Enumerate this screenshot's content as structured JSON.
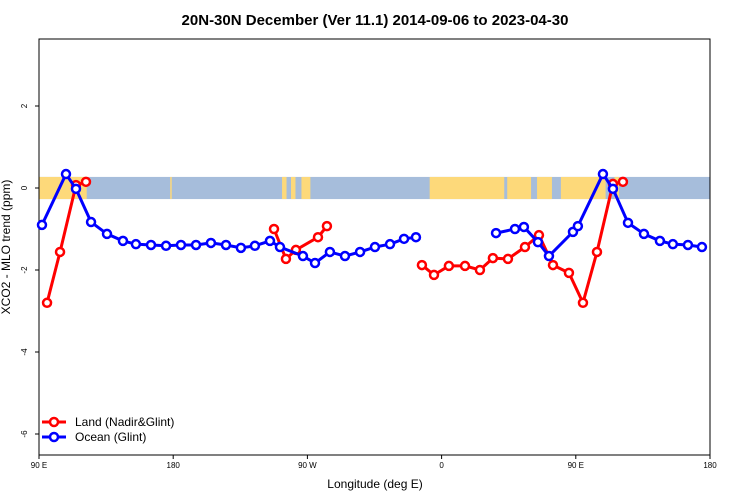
{
  "chart_data": {
    "type": "line",
    "title": "20N-30N December (Ver 11.1)   2014-09-06 to 2023-04-30",
    "xlabel": "Longitude (deg E)",
    "ylabel": "XCO2 - MLO trend (ppm)",
    "xlim": [
      90,
      540
    ],
    "ylim": [
      -6.5,
      3.6
    ],
    "x_ticks": [
      {
        "value": 90,
        "label": "90 E"
      },
      {
        "value": 180,
        "label": "180"
      },
      {
        "value": 270,
        "label": "90 W"
      },
      {
        "value": 360,
        "label": "0"
      },
      {
        "value": 450,
        "label": "90 E"
      },
      {
        "value": 540,
        "label": "180"
      }
    ],
    "y_ticks": [
      {
        "value": -6,
        "label": "-6"
      },
      {
        "value": -4,
        "label": "-4"
      },
      {
        "value": -2,
        "label": "-2"
      },
      {
        "value": 0,
        "label": "0"
      },
      {
        "value": 2,
        "label": "2"
      }
    ],
    "legend_position": "bottom-left",
    "map_band": {
      "ymin": -0.27,
      "ymax": 0.27,
      "ocean_color": "#a6bddb",
      "land_color": "#fdd97a"
    },
    "series": [
      {
        "name": "Land (Nadir&Glint)",
        "color": "#ff0000",
        "segments": [
          [
            [
              95.4,
              -2.8
            ],
            [
              104.1,
              -1.56
            ],
            [
              114.8,
              0.07
            ],
            [
              121.5,
              0.15
            ]
          ],
          [
            [
              247.6,
              -1.0
            ],
            [
              255.6,
              -1.73
            ],
            [
              262.3,
              -1.51
            ],
            [
              277.1,
              -1.2
            ],
            [
              283.1,
              -0.93
            ]
          ],
          [
            [
              346.8,
              -1.88
            ],
            [
              354.9,
              -2.12
            ],
            [
              364.9,
              -1.9
            ],
            [
              375.7,
              -1.9
            ],
            [
              385.7,
              -2.0
            ],
            [
              394.4,
              -1.71
            ],
            [
              404.5,
              -1.73
            ],
            [
              415.9,
              -1.44
            ],
            [
              425.3,
              -1.15
            ],
            [
              434.7,
              -1.88
            ],
            [
              445.4,
              -2.07
            ],
            [
              454.8,
              -2.8
            ],
            [
              464.2,
              -1.56
            ],
            [
              474.9,
              0.1
            ],
            [
              481.6,
              0.15
            ]
          ]
        ]
      },
      {
        "name": "Ocean (Glint)",
        "color": "#0000ff",
        "segments": [
          [
            [
              92.0,
              -0.9
            ],
            [
              108.1,
              0.34
            ],
            [
              114.8,
              -0.02
            ],
            [
              124.9,
              -0.83
            ],
            [
              135.6,
              -1.12
            ],
            [
              146.3,
              -1.29
            ],
            [
              155.0,
              -1.37
            ],
            [
              165.1,
              -1.39
            ],
            [
              175.2,
              -1.41
            ],
            [
              185.2,
              -1.39
            ],
            [
              195.3,
              -1.39
            ],
            [
              205.3,
              -1.34
            ],
            [
              215.4,
              -1.39
            ],
            [
              225.4,
              -1.46
            ],
            [
              234.8,
              -1.41
            ],
            [
              244.9,
              -1.29
            ],
            [
              251.6,
              -1.44
            ],
            [
              267.0,
              -1.66
            ],
            [
              275.1,
              -1.83
            ],
            [
              285.1,
              -1.56
            ],
            [
              295.2,
              -1.66
            ],
            [
              305.3,
              -1.56
            ],
            [
              315.3,
              -1.44
            ],
            [
              325.4,
              -1.37
            ],
            [
              334.8,
              -1.24
            ],
            [
              342.8,
              -1.2
            ]
          ],
          [
            [
              396.5,
              -1.1
            ],
            [
              409.2,
              -1.0
            ],
            [
              415.2,
              -0.95
            ],
            [
              424.6,
              -1.32
            ],
            [
              432.0,
              -1.66
            ],
            [
              448.1,
              -1.07
            ],
            [
              451.4,
              -0.93
            ],
            [
              468.2,
              0.34
            ],
            [
              474.9,
              -0.02
            ],
            [
              485.0,
              -0.85
            ],
            [
              495.7,
              -1.12
            ],
            [
              506.4,
              -1.29
            ],
            [
              515.1,
              -1.37
            ],
            [
              525.2,
              -1.39
            ],
            [
              534.6,
              -1.44
            ]
          ]
        ]
      }
    ]
  }
}
